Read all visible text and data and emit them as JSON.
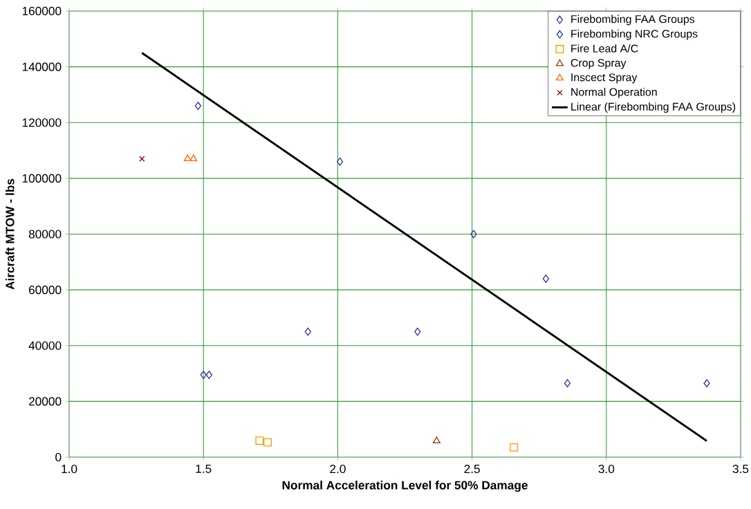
{
  "chart_data": {
    "type": "scatter",
    "xlabel": "Normal Acceleration Level for 50% Damage",
    "ylabel": "Aircraft MTOW - lbs",
    "xlim": [
      1.0,
      3.5
    ],
    "ylim": [
      0,
      160000
    ],
    "xticks": [
      {
        "value": 1.0,
        "label": "1.0"
      },
      {
        "value": 1.5,
        "label": "1.5"
      },
      {
        "value": 2.0,
        "label": "2.0"
      },
      {
        "value": 2.5,
        "label": "2.5"
      },
      {
        "value": 3.0,
        "label": "3.0"
      },
      {
        "value": 3.5,
        "label": "3.5"
      }
    ],
    "yticks": [
      0,
      20000,
      40000,
      60000,
      80000,
      100000,
      120000,
      140000,
      160000
    ],
    "grid": true,
    "legend": "top right",
    "series": [
      {
        "name": "Firebombing FAA Groups",
        "color": "#333399",
        "marker": "diamond",
        "x": [
          1.48,
          2.008,
          2.506,
          2.775,
          2.855,
          3.374
        ],
        "values": [
          126000,
          106000,
          80000,
          64000,
          26500,
          26500
        ]
      },
      {
        "name": "Firebombing NRC Groups",
        "color": "#333399",
        "marker": "diamond",
        "x": [
          1.5,
          1.521,
          1.889,
          2.297
        ],
        "values": [
          29500,
          29500,
          45000,
          45000
        ]
      },
      {
        "name": "Fire Lead A/C",
        "color": "#ff9900",
        "marker": "square",
        "x": [
          1.709,
          1.739,
          2.656
        ],
        "values": [
          5900,
          5300,
          3500
        ]
      },
      {
        "name": "Crop Spray",
        "color": "#993300",
        "marker": "triangle",
        "x": [
          2.368
        ],
        "values": [
          5800
        ]
      },
      {
        "name": "Inscect Spray",
        "color": "#ff6600",
        "marker": "triangle",
        "x": [
          1.441,
          1.463
        ],
        "values": [
          107000,
          107000
        ]
      },
      {
        "name": "Normal Operation",
        "color": "#990000",
        "marker": "cross",
        "x": [
          1.271
        ],
        "values": [
          107000
        ]
      },
      {
        "name": "Linear (Firebombing FAA Groups)",
        "type": "line",
        "color": "#000000",
        "marker": "none",
        "line_style": "solid",
        "x": [
          1.271,
          3.374
        ],
        "values": [
          145000,
          5800
        ]
      }
    ]
  }
}
